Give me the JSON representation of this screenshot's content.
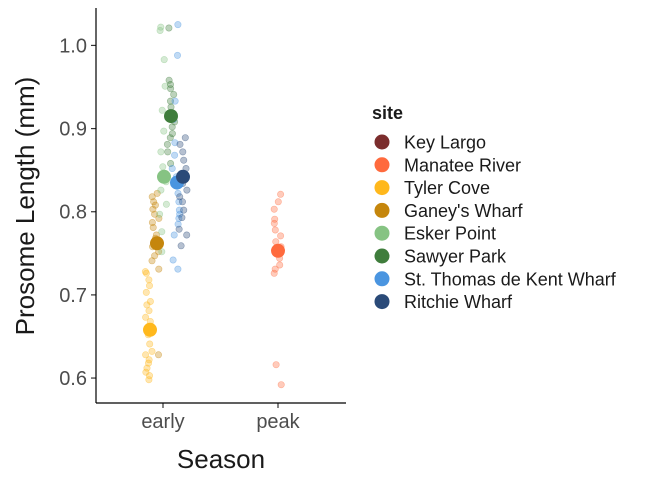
{
  "chart_data": {
    "type": "scatter",
    "xlabel": "Season",
    "ylabel": "Prosome Length (mm)",
    "categories": [
      "early",
      "peak"
    ],
    "y_ticks": [
      "0.6",
      "0.7",
      "0.8",
      "0.9",
      "1.0"
    ],
    "ylim": [
      0.57,
      1.045
    ],
    "grid": false,
    "legend": {
      "title": "site",
      "position": "right",
      "entries": [
        {
          "name": "Key Largo",
          "color": "#7B2D2D"
        },
        {
          "name": "Manatee River",
          "color": "#FF6A3D"
        },
        {
          "name": "Tyler Cove",
          "color": "#FFB81C"
        },
        {
          "name": "Ganey's Wharf",
          "color": "#C5860C"
        },
        {
          "name": "Esker Point",
          "color": "#86C383"
        },
        {
          "name": "Sawyer Park",
          "color": "#3F7D3C"
        },
        {
          "name": "St. Thomas de Kent Wharf",
          "color": "#4A95E0"
        },
        {
          "name": "Ritchie Wharf",
          "color": "#2A4A78"
        }
      ]
    },
    "series": [
      {
        "name": "Tyler Cove",
        "category": "early",
        "color": "#FFB81C",
        "mean": 0.658,
        "values": [
          0.598,
          0.603,
          0.607,
          0.612,
          0.618,
          0.622,
          0.628,
          0.632,
          0.641,
          0.652,
          0.657,
          0.661,
          0.668,
          0.673,
          0.681,
          0.688,
          0.692,
          0.703,
          0.711,
          0.718,
          0.726,
          0.728
        ]
      },
      {
        "name": "Ganey's Wharf",
        "category": "early",
        "color": "#C5860C",
        "mean": 0.762,
        "values": [
          0.628,
          0.731,
          0.741,
          0.747,
          0.752,
          0.758,
          0.763,
          0.768,
          0.772,
          0.781,
          0.787,
          0.792,
          0.797,
          0.803,
          0.808,
          0.812,
          0.818,
          0.822
        ]
      },
      {
        "name": "Esker Point",
        "category": "early",
        "color": "#86C383",
        "mean": 0.842,
        "values": [
          0.752,
          0.776,
          0.797,
          0.809,
          0.826,
          0.836,
          0.854,
          0.872,
          0.897,
          0.922,
          0.951,
          0.983,
          1.018,
          1.022
        ]
      },
      {
        "name": "Sawyer Park",
        "category": "early",
        "color": "#3F7D3C",
        "mean": 0.915,
        "values": [
          0.858,
          0.872,
          0.881,
          0.889,
          0.894,
          0.902,
          0.908,
          0.912,
          0.919,
          0.926,
          0.933,
          0.941,
          0.948,
          0.953,
          0.958,
          1.021
        ]
      },
      {
        "name": "St. Thomas de Kent Wharf",
        "category": "early",
        "color": "#4A95E0",
        "mean": 0.835,
        "values": [
          0.731,
          0.742,
          0.772,
          0.785,
          0.792,
          0.797,
          0.802,
          0.812,
          0.822,
          0.832,
          0.842,
          0.852,
          0.868,
          0.883,
          0.911,
          0.933,
          0.988,
          1.025
        ]
      },
      {
        "name": "Ritchie Wharf",
        "category": "early",
        "color": "#2A4A78",
        "mean": 0.842,
        "values": [
          0.759,
          0.772,
          0.779,
          0.793,
          0.802,
          0.812,
          0.818,
          0.826,
          0.834,
          0.852,
          0.862,
          0.872,
          0.881,
          0.889
        ]
      },
      {
        "name": "Manatee River",
        "category": "peak",
        "color": "#FF6A3D",
        "mean": 0.753,
        "values": [
          0.592,
          0.616,
          0.726,
          0.731,
          0.736,
          0.744,
          0.752,
          0.758,
          0.764,
          0.771,
          0.778,
          0.786,
          0.791,
          0.803,
          0.812,
          0.821
        ]
      }
    ]
  }
}
